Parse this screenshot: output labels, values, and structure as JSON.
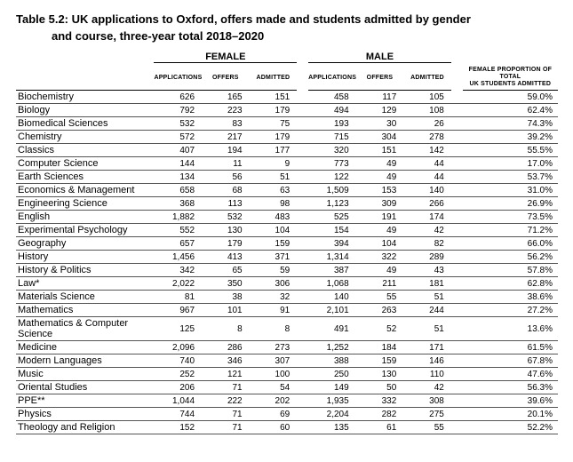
{
  "header": {
    "title": "Table 5.2: UK applications to Oxford, offers made and students admitted by gender",
    "subtitle": "and course, three-year total 2018–2020"
  },
  "columns": {
    "group_female": "FEMALE",
    "group_male": "MALE",
    "applications": "APPLICATIONS",
    "offers": "OFFERS",
    "admitted": "ADMITTED",
    "proportion_line1": "FEMALE PROPORTION OF TOTAL",
    "proportion_line2": "UK STUDENTS ADMITTED"
  },
  "style": {
    "font_family": "Arial",
    "title_fontsize": 13,
    "body_fontsize": 10,
    "course_fontsize": 11,
    "subheader_fontsize": 7,
    "row_border_color": "#555555",
    "header_border_color": "#000000",
    "background": "#ffffff",
    "text_color": "#000000"
  },
  "table": {
    "type": "table",
    "course_col_width": 145,
    "num_col_width": 50,
    "pct_col_width": 100,
    "rows": [
      {
        "course": "Biochemistry",
        "f_app": "626",
        "f_off": "165",
        "f_adm": "151",
        "m_app": "458",
        "m_off": "117",
        "m_adm": "105",
        "pct": "59.0%"
      },
      {
        "course": "Biology",
        "f_app": "792",
        "f_off": "223",
        "f_adm": "179",
        "m_app": "494",
        "m_off": "129",
        "m_adm": "108",
        "pct": "62.4%"
      },
      {
        "course": "Biomedical Sciences",
        "f_app": "532",
        "f_off": "83",
        "f_adm": "75",
        "m_app": "193",
        "m_off": "30",
        "m_adm": "26",
        "pct": "74.3%"
      },
      {
        "course": "Chemistry",
        "f_app": "572",
        "f_off": "217",
        "f_adm": "179",
        "m_app": "715",
        "m_off": "304",
        "m_adm": "278",
        "pct": "39.2%"
      },
      {
        "course": "Classics",
        "f_app": "407",
        "f_off": "194",
        "f_adm": "177",
        "m_app": "320",
        "m_off": "151",
        "m_adm": "142",
        "pct": "55.5%"
      },
      {
        "course": "Computer Science",
        "f_app": "144",
        "f_off": "11",
        "f_adm": "9",
        "m_app": "773",
        "m_off": "49",
        "m_adm": "44",
        "pct": "17.0%"
      },
      {
        "course": "Earth Sciences",
        "f_app": "134",
        "f_off": "56",
        "f_adm": "51",
        "m_app": "122",
        "m_off": "49",
        "m_adm": "44",
        "pct": "53.7%"
      },
      {
        "course": "Economics & Management",
        "f_app": "658",
        "f_off": "68",
        "f_adm": "63",
        "m_app": "1,509",
        "m_off": "153",
        "m_adm": "140",
        "pct": "31.0%"
      },
      {
        "course": "Engineering Science",
        "f_app": "368",
        "f_off": "113",
        "f_adm": "98",
        "m_app": "1,123",
        "m_off": "309",
        "m_adm": "266",
        "pct": "26.9%"
      },
      {
        "course": "English",
        "f_app": "1,882",
        "f_off": "532",
        "f_adm": "483",
        "m_app": "525",
        "m_off": "191",
        "m_adm": "174",
        "pct": "73.5%"
      },
      {
        "course": "Experimental Psychology",
        "f_app": "552",
        "f_off": "130",
        "f_adm": "104",
        "m_app": "154",
        "m_off": "49",
        "m_adm": "42",
        "pct": "71.2%"
      },
      {
        "course": "Geography",
        "f_app": "657",
        "f_off": "179",
        "f_adm": "159",
        "m_app": "394",
        "m_off": "104",
        "m_adm": "82",
        "pct": "66.0%"
      },
      {
        "course": "History",
        "f_app": "1,456",
        "f_off": "413",
        "f_adm": "371",
        "m_app": "1,314",
        "m_off": "322",
        "m_adm": "289",
        "pct": "56.2%"
      },
      {
        "course": "History & Politics",
        "f_app": "342",
        "f_off": "65",
        "f_adm": "59",
        "m_app": "387",
        "m_off": "49",
        "m_adm": "43",
        "pct": "57.8%"
      },
      {
        "course": "Law*",
        "f_app": "2,022",
        "f_off": "350",
        "f_adm": "306",
        "m_app": "1,068",
        "m_off": "211",
        "m_adm": "181",
        "pct": "62.8%"
      },
      {
        "course": "Materials Science",
        "f_app": "81",
        "f_off": "38",
        "f_adm": "32",
        "m_app": "140",
        "m_off": "55",
        "m_adm": "51",
        "pct": "38.6%"
      },
      {
        "course": "Mathematics",
        "f_app": "967",
        "f_off": "101",
        "f_adm": "91",
        "m_app": "2,101",
        "m_off": "263",
        "m_adm": "244",
        "pct": "27.2%"
      },
      {
        "course": "Mathematics & Computer Science",
        "f_app": "125",
        "f_off": "8",
        "f_adm": "8",
        "m_app": "491",
        "m_off": "52",
        "m_adm": "51",
        "pct": "13.6%"
      },
      {
        "course": "Medicine",
        "f_app": "2,096",
        "f_off": "286",
        "f_adm": "273",
        "m_app": "1,252",
        "m_off": "184",
        "m_adm": "171",
        "pct": "61.5%"
      },
      {
        "course": "Modern Languages",
        "f_app": "740",
        "f_off": "346",
        "f_adm": "307",
        "m_app": "388",
        "m_off": "159",
        "m_adm": "146",
        "pct": "67.8%"
      },
      {
        "course": "Music",
        "f_app": "252",
        "f_off": "121",
        "f_adm": "100",
        "m_app": "250",
        "m_off": "130",
        "m_adm": "110",
        "pct": "47.6%"
      },
      {
        "course": "Oriental Studies",
        "f_app": "206",
        "f_off": "71",
        "f_adm": "54",
        "m_app": "149",
        "m_off": "50",
        "m_adm": "42",
        "pct": "56.3%"
      },
      {
        "course": "PPE**",
        "f_app": "1,044",
        "f_off": "222",
        "f_adm": "202",
        "m_app": "1,935",
        "m_off": "332",
        "m_adm": "308",
        "pct": "39.6%"
      },
      {
        "course": "Physics",
        "f_app": "744",
        "f_off": "71",
        "f_adm": "69",
        "m_app": "2,204",
        "m_off": "282",
        "m_adm": "275",
        "pct": "20.1%"
      },
      {
        "course": "Theology and Religion",
        "f_app": "152",
        "f_off": "71",
        "f_adm": "60",
        "m_app": "135",
        "m_off": "61",
        "m_adm": "55",
        "pct": "52.2%"
      }
    ]
  }
}
